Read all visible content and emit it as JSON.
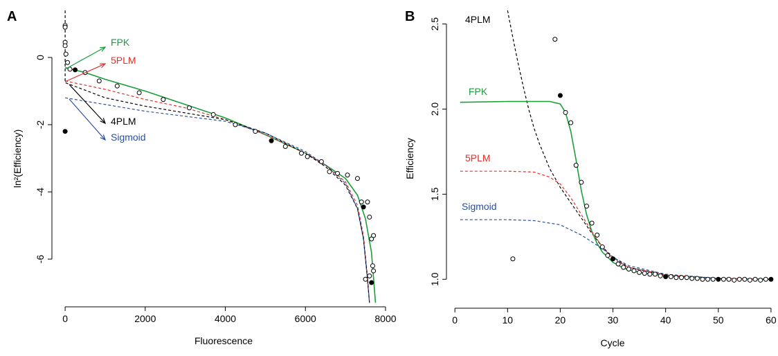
{
  "chart_data": [
    {
      "type": "line",
      "panel_label": "A",
      "x_label": "Fluorescence",
      "y_label": "ln²(Efficiency)",
      "xlim": [
        -330,
        8260
      ],
      "ylim": [
        -7.42,
        1.4
      ],
      "xticks": [
        0,
        2000,
        4000,
        6000,
        8000
      ],
      "yticks": [
        -6,
        -4,
        -2,
        0
      ],
      "series": [
        {
          "name": "FPK",
          "color": "#1a9e3a",
          "dash": false,
          "x": [
            0,
            500,
            1000,
            2000,
            3000,
            4000,
            5000,
            6000,
            6500,
            7000,
            7300,
            7500,
            7650,
            7750
          ],
          "values": [
            -0.3,
            -0.45,
            -0.65,
            -1.0,
            -1.4,
            -1.8,
            -2.3,
            -2.85,
            -3.2,
            -3.6,
            -4.1,
            -4.8,
            -5.8,
            -7.3
          ]
        },
        {
          "name": "5PLM",
          "color": "#e0302a",
          "dash": true,
          "x": [
            0,
            1000,
            2000,
            3000,
            4000,
            5000,
            6000,
            6500,
            7000,
            7300,
            7450,
            7550,
            7600
          ],
          "values": [
            -0.7,
            -0.95,
            -1.25,
            -1.5,
            -1.85,
            -2.3,
            -2.85,
            -3.2,
            -3.7,
            -4.4,
            -5.3,
            -6.5,
            -7.3
          ]
        },
        {
          "name": "4PLM",
          "color": "#000000",
          "dash": true,
          "x": [
            0,
            0,
            1000,
            2000,
            3000,
            4000,
            5000,
            6000,
            6500,
            7000,
            7300,
            7450,
            7550,
            7600
          ],
          "values": [
            1.4,
            -0.75,
            -1.2,
            -1.45,
            -1.65,
            -1.85,
            -2.25,
            -2.85,
            -3.25,
            -3.8,
            -4.5,
            -5.4,
            -6.6,
            -7.3
          ]
        },
        {
          "name": "Sigmoid",
          "color": "#2a4fa0",
          "dash": true,
          "x": [
            0,
            1000,
            2000,
            3000,
            4000,
            5000,
            6000,
            6500,
            7000,
            7300,
            7450,
            7550,
            7600
          ],
          "values": [
            -1.2,
            -1.4,
            -1.6,
            -1.75,
            -1.9,
            -2.25,
            -2.8,
            -3.2,
            -3.75,
            -4.5,
            -5.4,
            -6.6,
            -7.3
          ]
        },
        {
          "marker": "open",
          "color": "#000000",
          "x": [
            0,
            0,
            0,
            0,
            20,
            60,
            120,
            500,
            850,
            1300,
            1850,
            2450,
            3100,
            3700,
            4250,
            4750,
            5500,
            5900,
            6050,
            6400,
            6600,
            6800,
            7050,
            7300,
            7400,
            7550,
            7600,
            7500,
            7600,
            7650,
            7700,
            7680,
            7700
          ],
          "values": [
            0.95,
            0.9,
            0.45,
            0.35,
            0.1,
            -0.15,
            -0.35,
            -0.45,
            -0.7,
            -0.85,
            -1.05,
            -1.25,
            -1.5,
            -1.7,
            -2.0,
            -2.2,
            -2.65,
            -2.85,
            -2.95,
            -3.1,
            -3.4,
            -3.45,
            -3.5,
            -3.6,
            -4.3,
            -4.3,
            -4.75,
            -6.6,
            -6.5,
            -5.4,
            -5.3,
            -6.2,
            -6.35
          ]
        },
        {
          "marker": "filled",
          "color": "#000000",
          "x": [
            0,
            250,
            5150,
            7450,
            7650
          ],
          "values": [
            -2.2,
            -0.37,
            -2.48,
            -4.45,
            -6.7
          ]
        }
      ]
    },
    {
      "type": "line",
      "panel_label": "B",
      "x_label": "Cycle",
      "y_label": "Efficiency",
      "xlim": [
        -1.6,
        60.8
      ],
      "ylim": [
        0.83,
        2.58
      ],
      "xticks": [
        0,
        10,
        20,
        30,
        40,
        50,
        60
      ],
      "yticks": [
        {
          "value": 1,
          "label": "1.0"
        },
        1.5,
        {
          "value": 2,
          "label": "2.0"
        },
        2.5
      ],
      "series": [
        {
          "name": "4PLM",
          "color": "#000000",
          "dash": true,
          "x": [
            10,
            11,
            12,
            13,
            14,
            15,
            16,
            18,
            20,
            22,
            24,
            26,
            28,
            30,
            33,
            40,
            50,
            60
          ],
          "values": [
            2.58,
            2.42,
            2.27,
            2.13,
            2.0,
            1.89,
            1.8,
            1.65,
            1.54,
            1.45,
            1.36,
            1.27,
            1.19,
            1.13,
            1.07,
            1.025,
            1.005,
            1.0
          ]
        },
        {
          "name": "FPK",
          "color": "#1a9e3a",
          "dash": false,
          "x": [
            1,
            10,
            18,
            20,
            21,
            22,
            23,
            24,
            25,
            26,
            27,
            28,
            30,
            32,
            35,
            40,
            50,
            60
          ],
          "values": [
            2.04,
            2.045,
            2.045,
            2.03,
            1.98,
            1.87,
            1.7,
            1.52,
            1.38,
            1.28,
            1.21,
            1.16,
            1.1,
            1.065,
            1.04,
            1.02,
            1.005,
            1.0
          ]
        },
        {
          "name": "5PLM",
          "color": "#e0302a",
          "dash": true,
          "x": [
            1,
            10,
            15,
            18,
            20,
            22,
            24,
            26,
            28,
            30,
            33,
            40,
            50,
            60
          ],
          "values": [
            1.635,
            1.635,
            1.63,
            1.6,
            1.56,
            1.48,
            1.38,
            1.28,
            1.19,
            1.12,
            1.07,
            1.025,
            1.005,
            1.0
          ]
        },
        {
          "name": "Sigmoid",
          "color": "#2a4fa0",
          "dash": true,
          "x": [
            1,
            10,
            15,
            18,
            20,
            22,
            24,
            26,
            28,
            30,
            33,
            40,
            50,
            60
          ],
          "values": [
            1.35,
            1.35,
            1.345,
            1.33,
            1.32,
            1.29,
            1.26,
            1.22,
            1.18,
            1.13,
            1.08,
            1.03,
            1.005,
            1.0
          ]
        },
        {
          "marker": "open",
          "color": "#000000",
          "x": [
            11,
            19,
            21,
            22,
            23,
            24,
            25,
            26,
            27,
            28,
            29,
            30,
            31,
            32,
            33,
            34,
            35,
            36,
            37,
            38,
            39,
            41,
            42,
            43,
            44,
            45,
            46,
            47,
            48,
            49,
            51,
            52,
            53,
            54,
            55,
            56,
            57,
            58,
            59
          ],
          "values": [
            1.12,
            2.41,
            1.98,
            1.92,
            1.67,
            1.57,
            1.43,
            1.33,
            1.26,
            1.19,
            1.14,
            1.12,
            1.09,
            1.07,
            1.06,
            1.05,
            1.04,
            1.035,
            1.03,
            1.03,
            1.02,
            1.015,
            1.01,
            1.01,
            1.01,
            1.005,
            1.005,
            1.0,
            1.0,
            1.0,
            1.0,
            1.0,
            0.995,
            1.0,
            1.0,
            0.995,
            1.0,
            0.995,
            1.0
          ]
        },
        {
          "marker": "filled",
          "color": "#000000",
          "x": [
            20,
            30,
            40,
            50,
            60
          ],
          "values": [
            2.08,
            1.12,
            1.015,
            1.0,
            1.0
          ]
        }
      ]
    }
  ]
}
